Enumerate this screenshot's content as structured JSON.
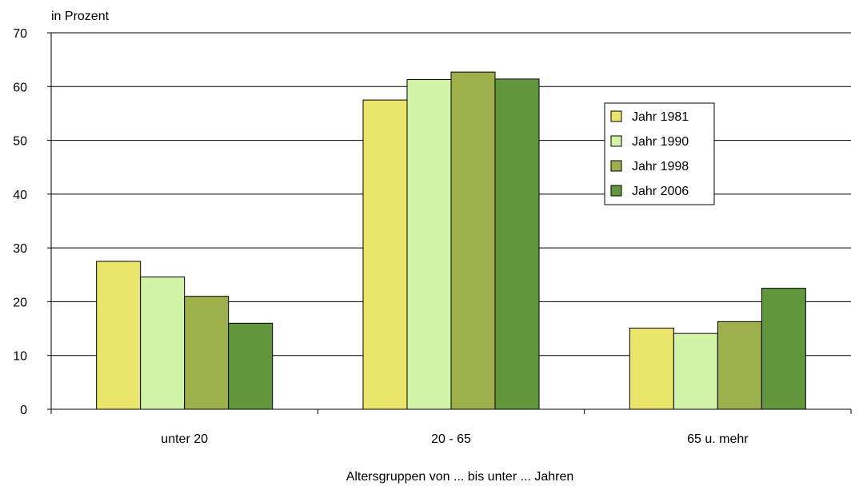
{
  "chart_data": {
    "type": "bar",
    "ylabel": "in Prozent",
    "xlabel": "Altersgruppen von ... bis unter ... Jahren",
    "ylim": [
      0,
      70
    ],
    "yticks": [
      0,
      10,
      20,
      30,
      40,
      50,
      60,
      70
    ],
    "grid": true,
    "legend_position": "top-right",
    "categories": [
      "unter 20",
      "20 - 65",
      "65 u. mehr"
    ],
    "series": [
      {
        "name": "Jahr 1981",
        "color": "#ece56c",
        "values": [
          27.5,
          57.5,
          15.1
        ]
      },
      {
        "name": "Jahr 1990",
        "color": "#d2f4a8",
        "values": [
          24.6,
          61.3,
          14.1
        ]
      },
      {
        "name": "Jahr 1998",
        "color": "#9db04b",
        "values": [
          21.0,
          62.7,
          16.3
        ]
      },
      {
        "name": "Jahr 2006",
        "color": "#62963c",
        "values": [
          16.0,
          61.4,
          22.5
        ]
      }
    ]
  }
}
